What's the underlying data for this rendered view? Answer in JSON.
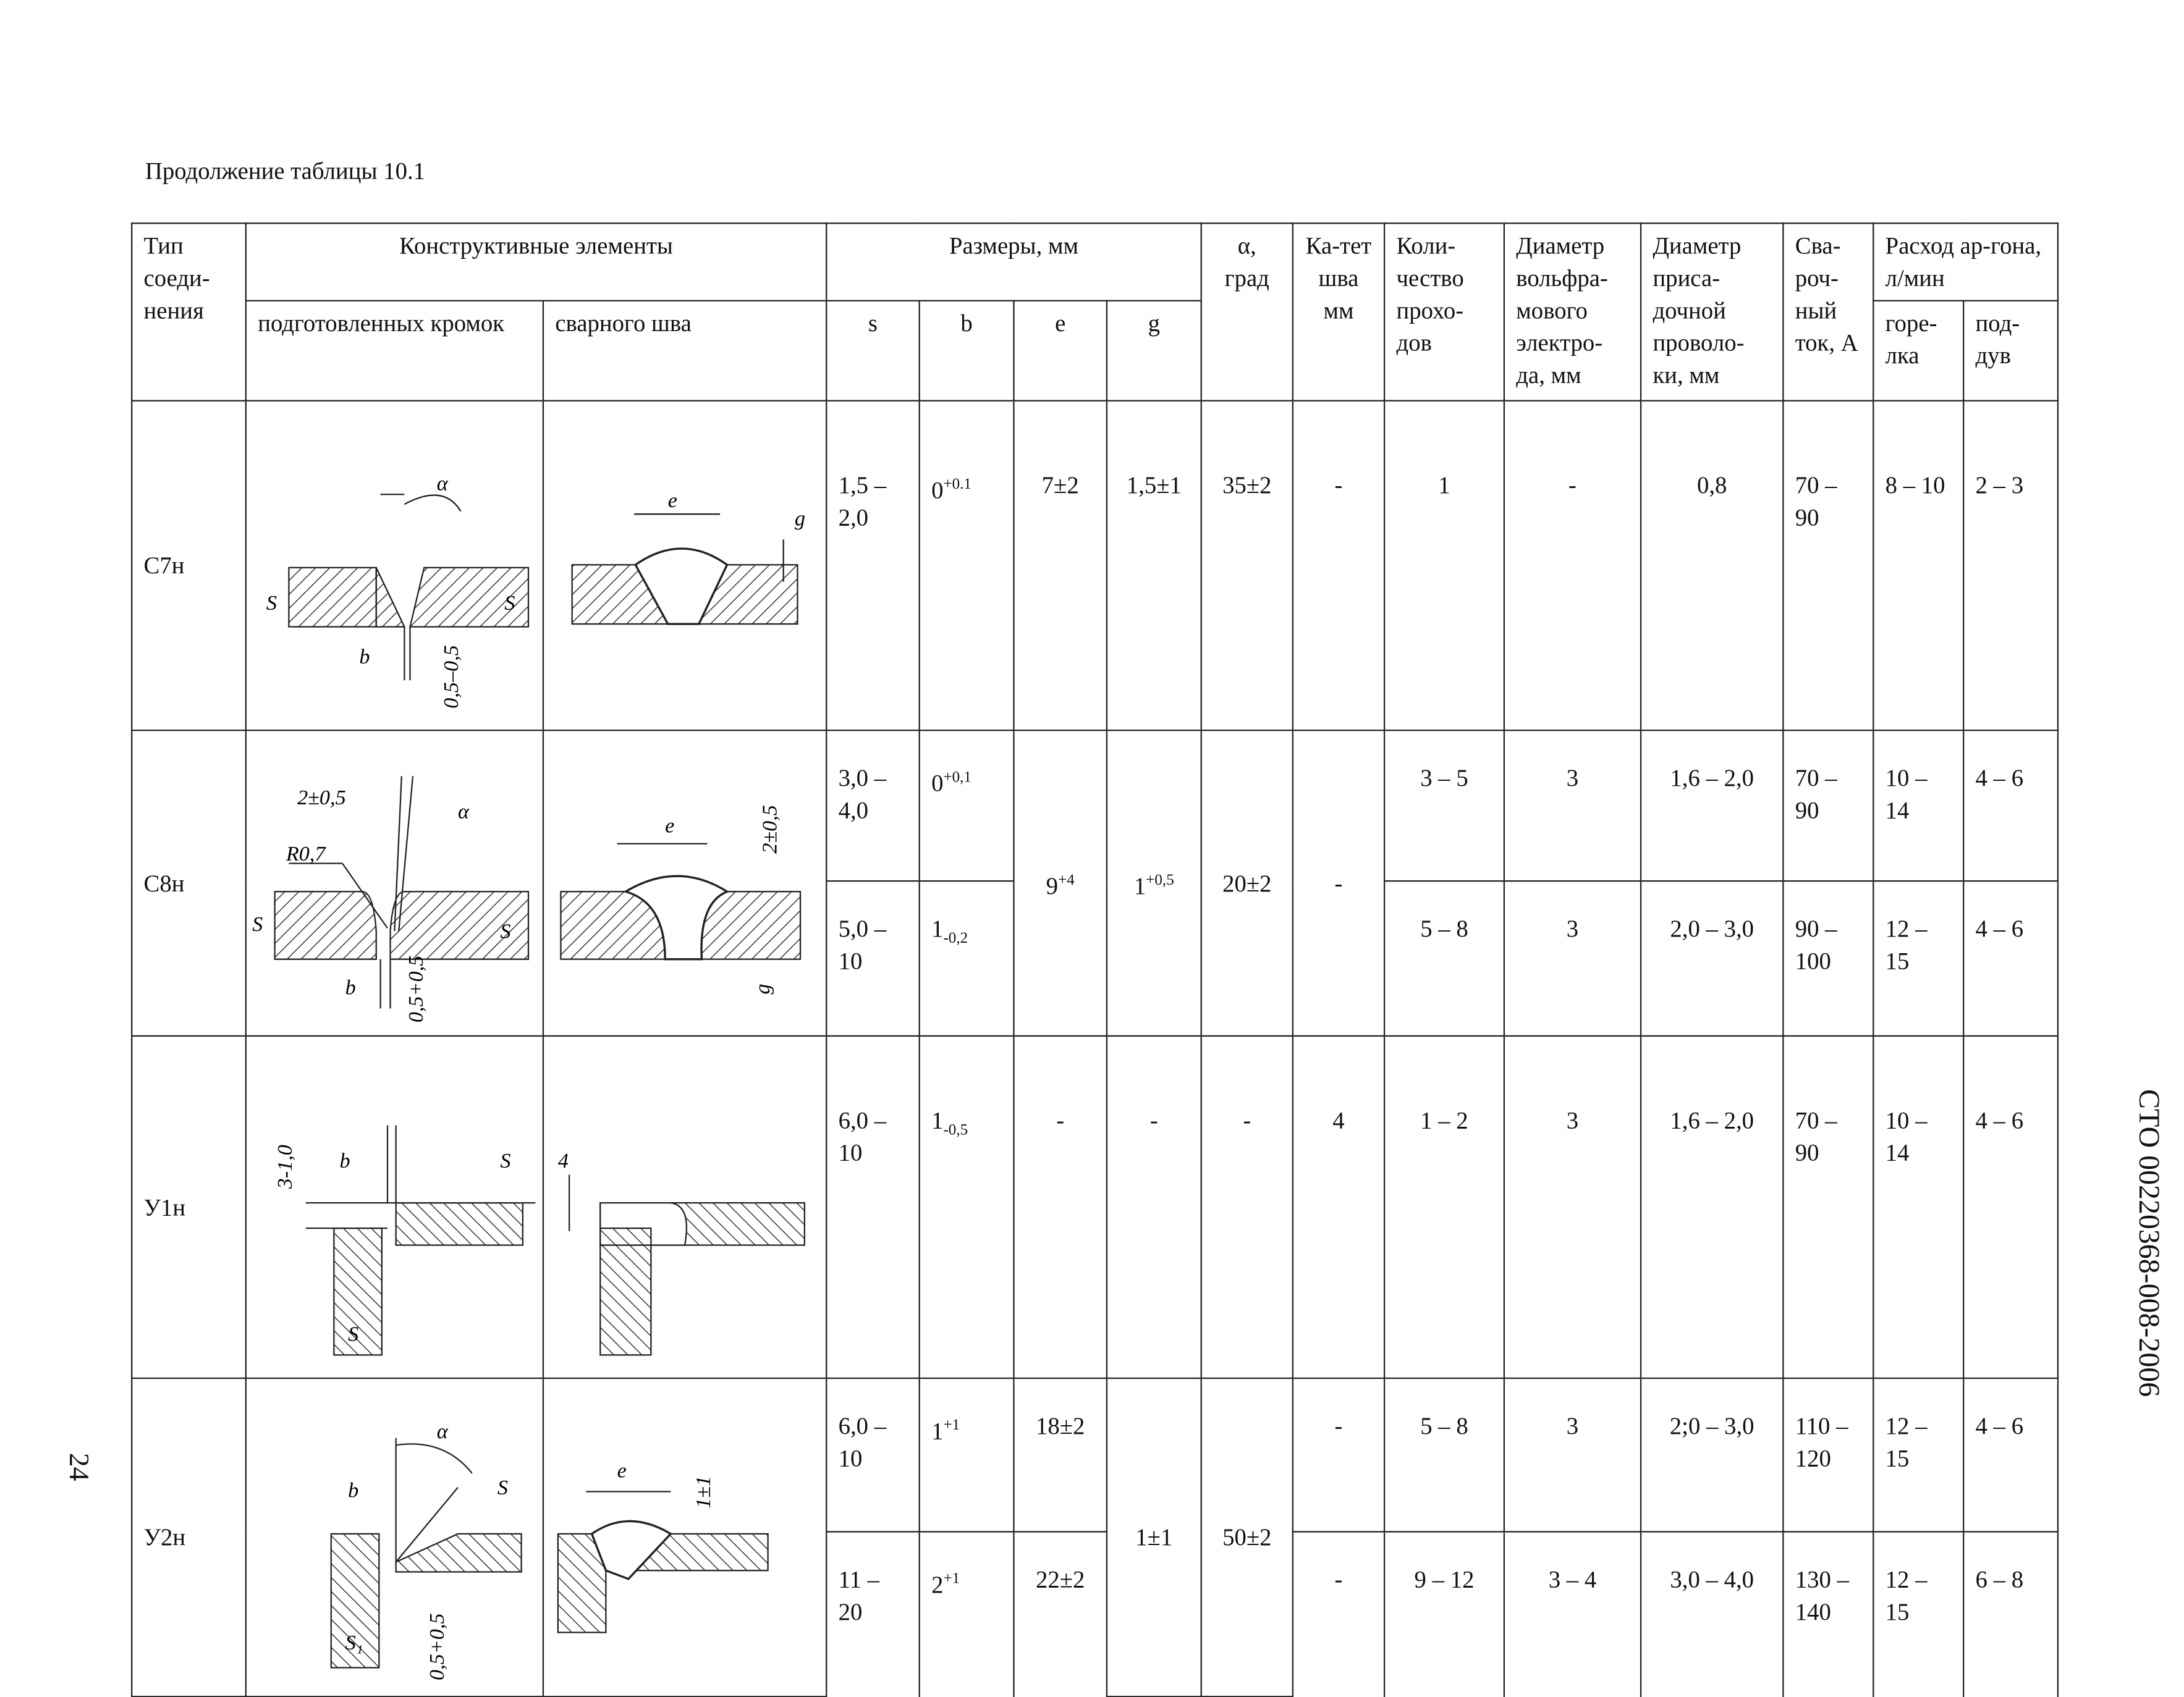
{
  "caption": "Продолжение таблицы 10.1",
  "side_code": "СТО 00220368-008-2006",
  "page_number": "24",
  "header": {
    "type": "Тип соеди-нения",
    "elements": "Конструктивные элементы",
    "prepared": "подготовленных кромок",
    "weld": "сварного шва",
    "sizes": "Размеры, мм",
    "s": "s",
    "b": "b",
    "e": "e",
    "g": "g",
    "alpha": "α, град",
    "leg": "Ка-тет шва мм",
    "passes": "Коли-чество прохо-дов",
    "tungsten": "Диаметр вольфра-мового электро-да, мм",
    "filler": "Диаметр приса-дочной проволо-ки, мм",
    "current": "Сва-роч-ный ток, А",
    "argon": "Расход ар-гона, л/мин",
    "torch": "горе-лка",
    "backing": "под-дув"
  },
  "rows": {
    "c7": {
      "type": "С7н",
      "s": "1,5 – 2,0",
      "b": "0",
      "b_sup": "+0.1",
      "e": "7±2",
      "g": "1,5±1",
      "alpha": "35±2",
      "leg": "-",
      "passes": "1",
      "tungsten": "-",
      "filler": "0,8",
      "current": "70 – 90",
      "torch": "8 – 10",
      "backing": "2 – 3",
      "labels": {
        "alpha": "α",
        "s1": "S",
        "s2": "S",
        "b": "b",
        "gap": "0,5–0,5",
        "e": "e",
        "g": "g"
      }
    },
    "c8": {
      "type": "С8н",
      "e": "9",
      "e_sup": "+4",
      "g": "1",
      "g_sup": "+0,5",
      "alpha": "20±2",
      "leg": "-",
      "sub": [
        {
          "s": "3,0 – 4,0",
          "b": "0",
          "b_mod": "+0,1",
          "passes": "3 – 5",
          "tungsten": "3",
          "filler": "1,6 – 2,0",
          "current": "70 – 90",
          "torch": "10 – 14",
          "backing": "4 – 6"
        },
        {
          "s": "5,0 – 10",
          "b": "1",
          "b_mod": "-0,2",
          "passes": "5 – 8",
          "tungsten": "3",
          "filler": "2,0 – 3,0",
          "current": "90 – 100",
          "torch": "12 – 15",
          "backing": "4 – 6"
        }
      ],
      "labels": {
        "top": "2±0,5",
        "alpha": "α",
        "r": "R0,7",
        "s1": "S",
        "s2": "S",
        "b": "b",
        "gap": "0,5+0,5",
        "e": "e",
        "h": "2±0,5",
        "g": "g"
      }
    },
    "u1": {
      "type": "У1н",
      "s": "6,0 – 10",
      "b": "1",
      "b_mod": "-0,5",
      "e": "-",
      "g": "-",
      "alpha": "-",
      "leg": "4",
      "passes": "1 – 2",
      "tungsten": "3",
      "filler": "1,6 – 2,0",
      "current": "70 – 90",
      "torch": "10 – 14",
      "backing": "4 – 6",
      "labels": {
        "gap": "3-1,0",
        "b": "b",
        "s1": "S",
        "s2": "S",
        "k": "4"
      }
    },
    "u2": {
      "type": "У2н",
      "g": "1±1",
      "alpha": "50±2",
      "sub": [
        {
          "s": "6,0 – 10",
          "b": "1",
          "b_sup": "+1",
          "e": "18±2",
          "leg": "-",
          "passes": "5 – 8",
          "tungsten": "3",
          "filler": "2;0 – 3,0",
          "current": "110 – 120",
          "torch": "12 – 15",
          "backing": "4 – 6"
        },
        {
          "s": "11 – 20",
          "b": "2",
          "b_sup": "+1",
          "e": "22±2",
          "leg": "-",
          "passes": "9 – 12",
          "tungsten": "3 – 4",
          "filler": "3,0 – 4,0",
          "current": "130 – 140",
          "torch": "12 – 15",
          "backing": "6 – 8"
        }
      ],
      "labels": {
        "alpha": "α",
        "b": "b",
        "s1": "S",
        "s2": "S₁",
        "gap": "0,5+0,5",
        "e": "e",
        "h": "1±1"
      }
    }
  }
}
